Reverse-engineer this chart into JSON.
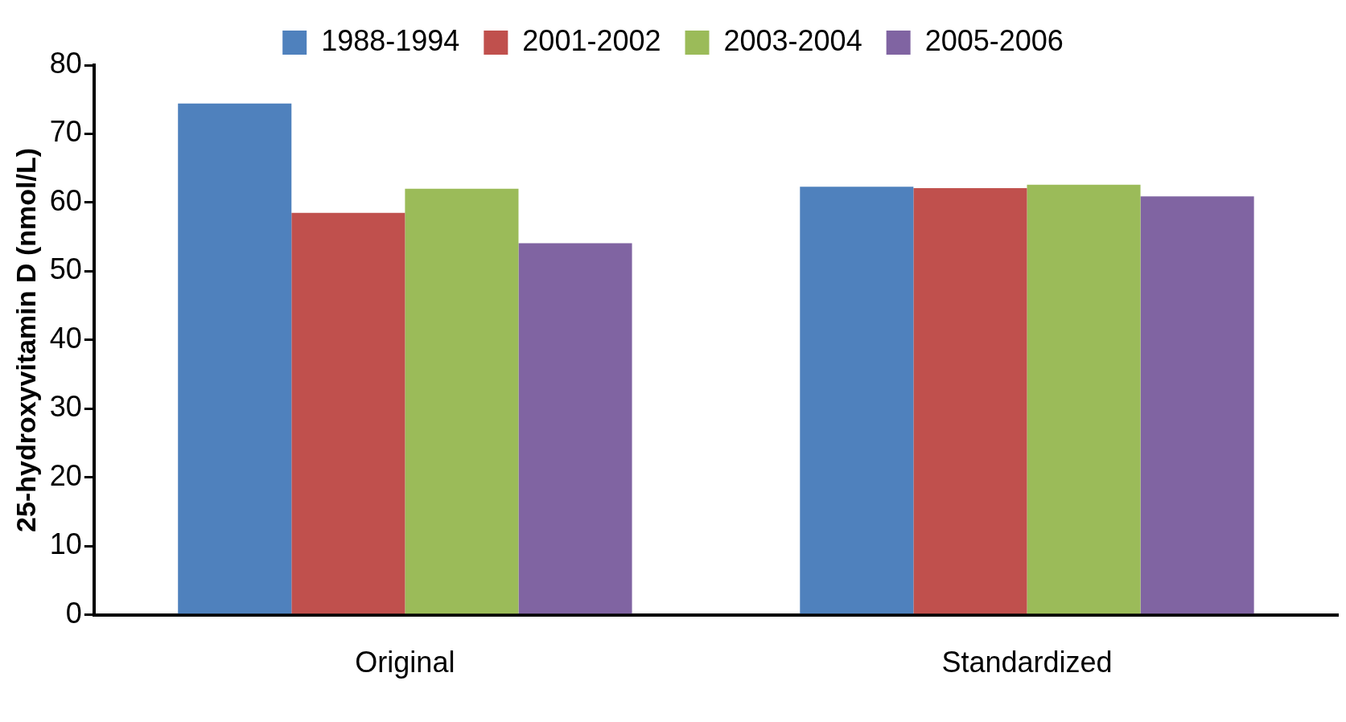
{
  "chart_data": {
    "type": "bar",
    "ylabel": "25-hydroxyvitamin D (nmol/L)",
    "categories": [
      "Original",
      "Standardized"
    ],
    "series": [
      {
        "name": "1988-1994",
        "color": "#4f81bd",
        "values": [
          74.4,
          62.3
        ]
      },
      {
        "name": "2001-2002",
        "color": "#c0504d",
        "values": [
          58.5,
          62.1
        ]
      },
      {
        "name": "2003-2004",
        "color": "#9bbb59",
        "values": [
          62.0,
          62.6
        ]
      },
      {
        "name": "2005-2006",
        "color": "#8064a2",
        "values": [
          54.1,
          60.9
        ]
      }
    ],
    "ylim": [
      0,
      80
    ],
    "yticks": [
      0,
      10,
      20,
      30,
      40,
      50,
      60,
      70,
      80
    ],
    "grid": false,
    "legend": "top"
  }
}
